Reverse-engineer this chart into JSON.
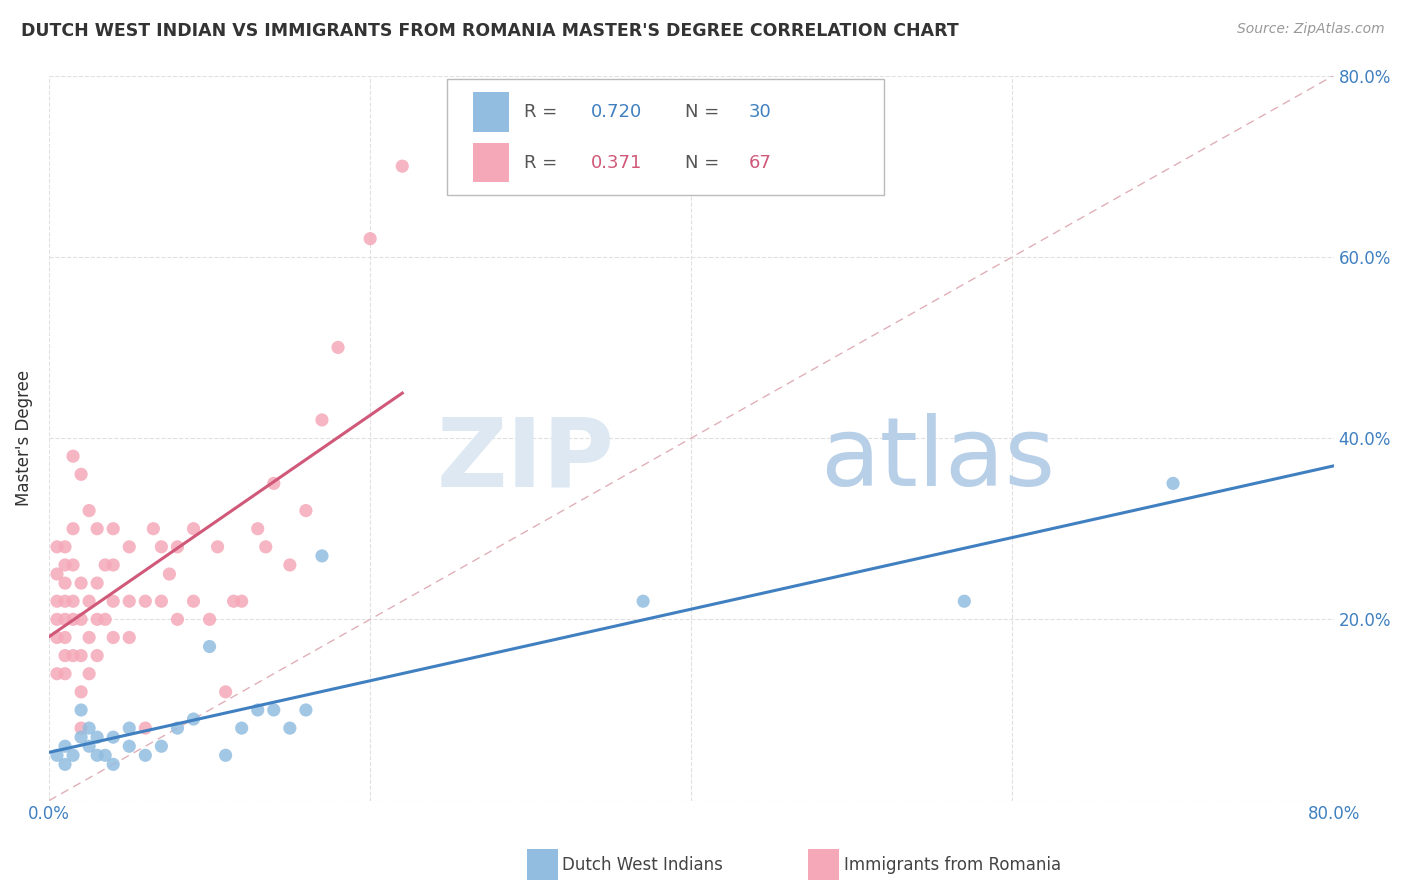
{
  "title": "DUTCH WEST INDIAN VS IMMIGRANTS FROM ROMANIA MASTER'S DEGREE CORRELATION CHART",
  "source": "Source: ZipAtlas.com",
  "ylabel": "Master's Degree",
  "xlim": [
    0,
    0.8
  ],
  "ylim": [
    0,
    0.8
  ],
  "ytick_vals": [
    0.0,
    0.2,
    0.4,
    0.6,
    0.8
  ],
  "ytick_labels_right": [
    "",
    "20.0%",
    "40.0%",
    "60.0%",
    "80.0%"
  ],
  "xtick_vals": [
    0.0,
    0.2,
    0.4,
    0.6,
    0.8
  ],
  "xtick_labels": [
    "0.0%",
    "",
    "",
    "",
    "80.0%"
  ],
  "blue_R": 0.72,
  "blue_N": 30,
  "pink_R": 0.371,
  "pink_N": 67,
  "blue_color": "#92bde0",
  "pink_color": "#f5a8b8",
  "blue_line_color": "#4080c0",
  "pink_line_color": "#d05878",
  "diagonal_color": "#cccccc",
  "text_color": "#333333",
  "label_color": "#4080c0",
  "blue_x": [
    0.005,
    0.01,
    0.01,
    0.015,
    0.02,
    0.02,
    0.025,
    0.025,
    0.03,
    0.03,
    0.035,
    0.04,
    0.04,
    0.05,
    0.05,
    0.06,
    0.07,
    0.08,
    0.09,
    0.1,
    0.11,
    0.12,
    0.13,
    0.14,
    0.15,
    0.16,
    0.17,
    0.37,
    0.57,
    0.7
  ],
  "blue_y": [
    0.05,
    0.04,
    0.06,
    0.05,
    0.07,
    0.1,
    0.06,
    0.08,
    0.05,
    0.07,
    0.05,
    0.04,
    0.07,
    0.06,
    0.08,
    0.05,
    0.06,
    0.08,
    0.09,
    0.17,
    0.05,
    0.08,
    0.1,
    0.1,
    0.08,
    0.1,
    0.27,
    0.22,
    0.22,
    0.35
  ],
  "pink_x": [
    0.005,
    0.005,
    0.005,
    0.005,
    0.005,
    0.005,
    0.01,
    0.01,
    0.01,
    0.01,
    0.01,
    0.01,
    0.01,
    0.01,
    0.015,
    0.015,
    0.015,
    0.015,
    0.015,
    0.02,
    0.02,
    0.02,
    0.02,
    0.02,
    0.025,
    0.025,
    0.025,
    0.03,
    0.03,
    0.03,
    0.03,
    0.035,
    0.035,
    0.04,
    0.04,
    0.04,
    0.04,
    0.05,
    0.05,
    0.05,
    0.06,
    0.06,
    0.065,
    0.07,
    0.07,
    0.075,
    0.08,
    0.08,
    0.09,
    0.09,
    0.1,
    0.105,
    0.11,
    0.115,
    0.12,
    0.13,
    0.135,
    0.14,
    0.15,
    0.16,
    0.17,
    0.18,
    0.2,
    0.22,
    0.015,
    0.02,
    0.025
  ],
  "pink_y": [
    0.14,
    0.18,
    0.2,
    0.22,
    0.25,
    0.28,
    0.14,
    0.16,
    0.18,
    0.2,
    0.22,
    0.24,
    0.26,
    0.28,
    0.16,
    0.2,
    0.22,
    0.26,
    0.3,
    0.08,
    0.12,
    0.16,
    0.2,
    0.24,
    0.14,
    0.18,
    0.22,
    0.16,
    0.2,
    0.24,
    0.3,
    0.2,
    0.26,
    0.18,
    0.22,
    0.26,
    0.3,
    0.18,
    0.22,
    0.28,
    0.08,
    0.22,
    0.3,
    0.22,
    0.28,
    0.25,
    0.2,
    0.28,
    0.22,
    0.3,
    0.2,
    0.28,
    0.12,
    0.22,
    0.22,
    0.3,
    0.28,
    0.35,
    0.26,
    0.32,
    0.42,
    0.5,
    0.62,
    0.7,
    0.38,
    0.36,
    0.32
  ],
  "background_color": "#ffffff",
  "grid_color": "#e0e0e0"
}
